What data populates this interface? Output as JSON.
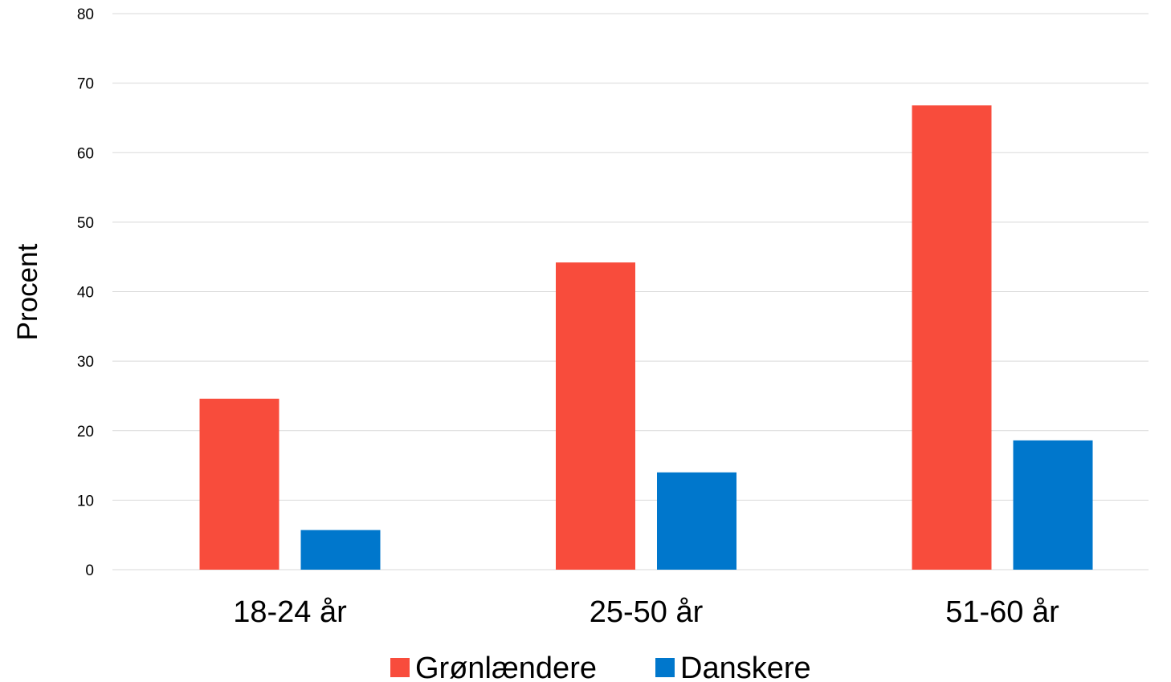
{
  "chart_data": {
    "type": "bar",
    "categories": [
      "18-24 år",
      "25-50 år",
      "51-60 år"
    ],
    "series": [
      {
        "name": "Grønlændere",
        "color": "#f84c3c",
        "values": [
          24.6,
          44.2,
          66.8
        ]
      },
      {
        "name": "Danskere",
        "color": "#0077cc",
        "values": [
          5.7,
          14.0,
          18.6
        ]
      }
    ],
    "title": "",
    "xlabel": "",
    "ylabel": "Procent",
    "ylim": [
      0,
      80
    ],
    "yticks": [
      "0",
      "10",
      "20",
      "30",
      "40",
      "50",
      "60",
      "70",
      "80"
    ],
    "grid": true,
    "legend_position": "bottom"
  }
}
